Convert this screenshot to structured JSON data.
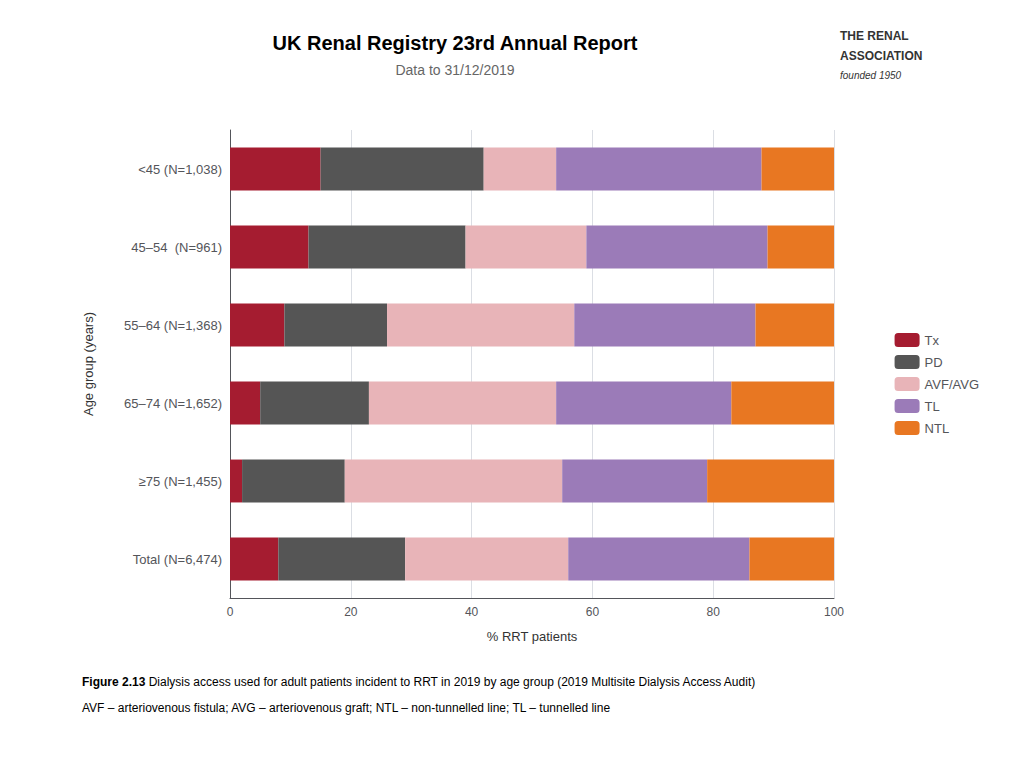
{
  "chart_data": {
    "type": "bar",
    "orientation": "horizontal",
    "stacked": true,
    "title": "UK Renal Registry 23rd Annual Report",
    "subtitle": "Data to 31/12/2019",
    "xlabel": "% RRT patients",
    "ylabel": "Age group (years)",
    "categories": [
      "<45 (N=1,038)",
      "45–54  (N=961)",
      "55–64 (N=1,368)",
      "65–74 (N=1,652)",
      "≥75 (N=1,455)",
      "Total (N=6,474)"
    ],
    "series": [
      {
        "name": "Tx",
        "color": "#a51c30",
        "values": [
          15.0,
          13.0,
          9.0,
          5.0,
          2.0,
          8.0
        ]
      },
      {
        "name": "PD",
        "color": "#555555",
        "values": [
          27.0,
          26.0,
          17.0,
          18.0,
          17.0,
          21.0
        ]
      },
      {
        "name": "AVF/AVG",
        "color": "#e8b4b8",
        "values": [
          12.0,
          20.0,
          31.0,
          31.0,
          36.0,
          27.0
        ]
      },
      {
        "name": "TL",
        "color": "#9b7bb8",
        "values": [
          34.0,
          30.0,
          30.0,
          29.0,
          24.0,
          30.0
        ]
      },
      {
        "name": "NTL",
        "color": "#e87722",
        "values": [
          12.0,
          11.0,
          13.0,
          17.0,
          21.0,
          14.0
        ]
      }
    ],
    "xlim": [
      0,
      100
    ],
    "xticks": [
      0,
      20,
      40,
      60,
      80,
      100
    ],
    "grid": true,
    "legend": "right",
    "caption_title": "Figure 2.13",
    "caption": "Dialysis access used for adult patients incident to RRT in 2019 by age group (2019 Multisite Dialysis Access Audit)",
    "note": "AVF – arteriovenous fistula; AVG – arteriovenous graft; NTL – non-tunnelled line; TL – tunnelled line",
    "logo_text": [
      "THE RENAL",
      "ASSOCIATION",
      "founded 1950"
    ]
  }
}
